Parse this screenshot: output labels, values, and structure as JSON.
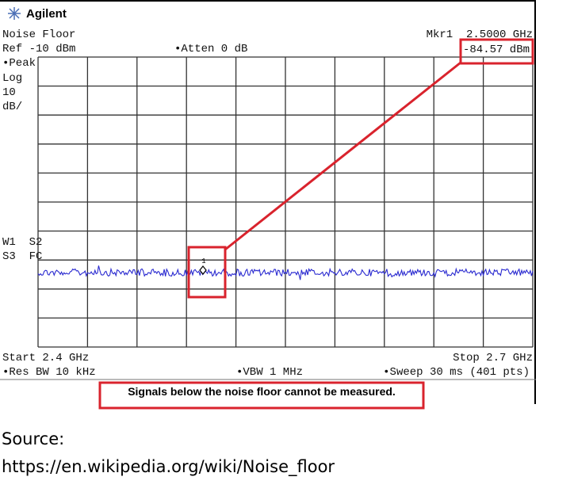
{
  "header": {
    "brand": "Agilent"
  },
  "status": {
    "mode": "Noise Floor",
    "marker": "Mkr1  2.5000 GHz",
    "reference": "Ref -10 dBm",
    "attenuation": "•Atten 0 dB",
    "marker_level": "-84.57 dBm"
  },
  "left_labels": [
    "•Peak",
    "Log",
    "10",
    "dB/",
    "W1  S2",
    "S3  FC"
  ],
  "footer": {
    "start": "Start 2.4 GHz",
    "stop": "Stop 2.7 GHz",
    "res_bw": "•Res BW 10 kHz",
    "vbw": "•VBW 1 MHz",
    "sweep": "•Sweep 30 ms (401 pts)"
  },
  "caption": "Signals below the noise floor cannot be measured.",
  "source": {
    "label": "Source:",
    "url": "https://en.wikipedia.org/wiki/Noise_floor"
  }
}
